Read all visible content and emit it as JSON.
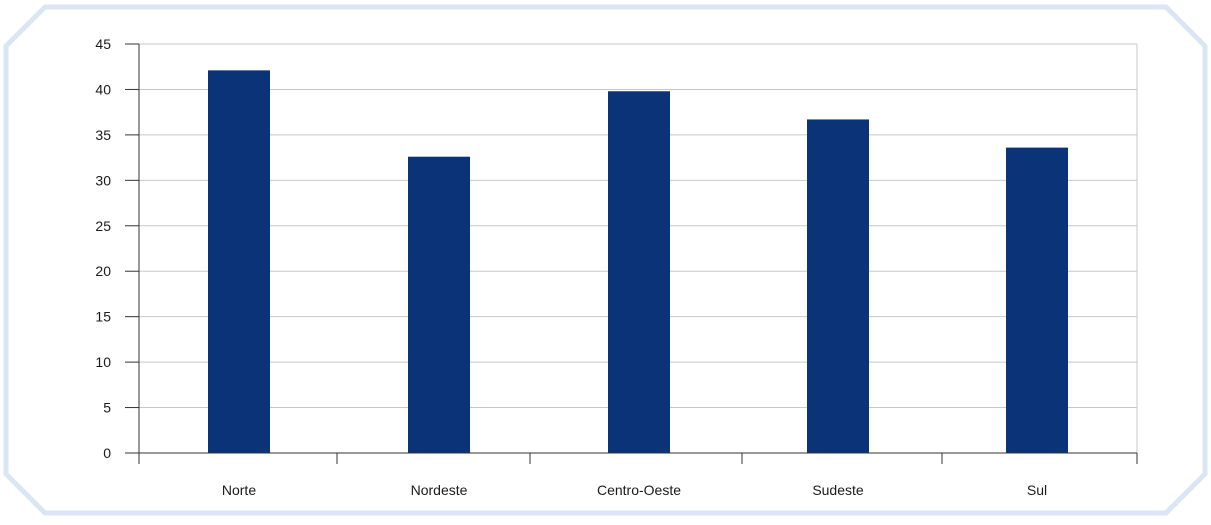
{
  "colors": {
    "frame_border": "#dbe6f4",
    "bar_fill": "#0b3478",
    "gridline": "#c8c8c8",
    "axis": "#333333",
    "text": "#1a1a1a"
  },
  "chart_data": {
    "type": "bar",
    "title": "",
    "xlabel": "",
    "ylabel": "",
    "categories": [
      "Norte",
      "Nordeste",
      "Centro-Oeste",
      "Sudeste",
      "Sul"
    ],
    "values": [
      42.1,
      32.6,
      39.8,
      36.7,
      33.6
    ],
    "ylim": [
      0,
      45
    ],
    "yticks": [
      0,
      5,
      10,
      15,
      20,
      25,
      30,
      35,
      40,
      45
    ],
    "ytick_labels": [
      "0",
      "5",
      "10",
      "15",
      "20",
      "25",
      "30",
      "35",
      "40",
      "45"
    ],
    "grid": true,
    "legend": "none"
  }
}
